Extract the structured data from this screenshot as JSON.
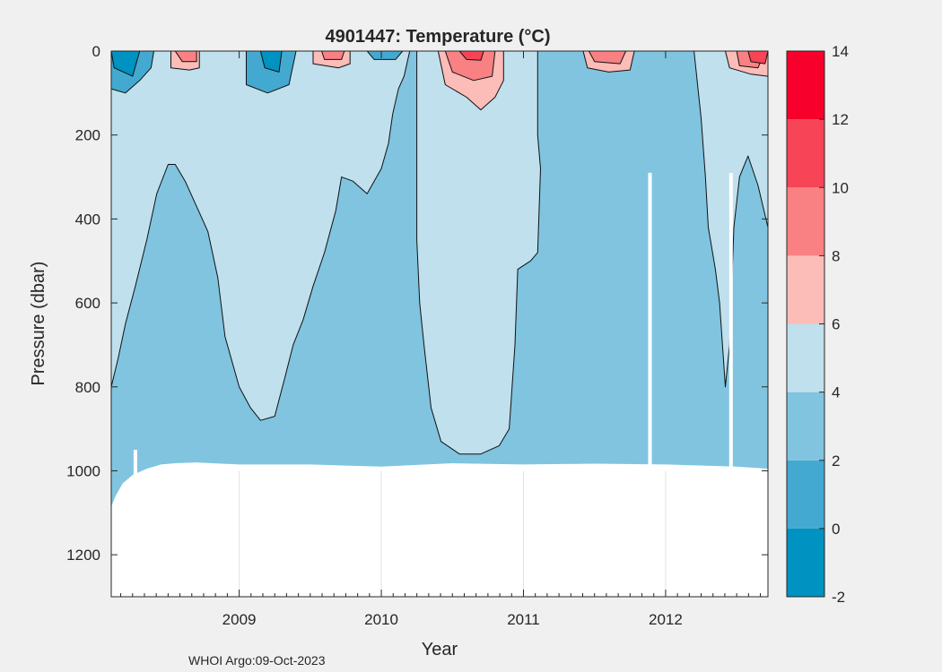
{
  "figure": {
    "credit": "WHOI Argo:09-Oct-2023",
    "background": "#f0f0f0"
  },
  "chart_data": {
    "type": "heatmap",
    "title": "4901447:  Temperature (°C)",
    "xlabel": "Year",
    "ylabel": "Pressure (dbar)",
    "xlim": [
      2008.1,
      2012.72
    ],
    "ylim": [
      1300,
      0
    ],
    "y_reversed": true,
    "x_ticks": [
      2009,
      2010,
      2011,
      2012
    ],
    "x_tick_labels": [
      "2009",
      "2010",
      "2011",
      "2012"
    ],
    "y_ticks": [
      0,
      200,
      400,
      600,
      800,
      1000,
      1200
    ],
    "y_tick_labels": [
      "0",
      "200",
      "400",
      "600",
      "800",
      "1000",
      "1200"
    ],
    "grid": false,
    "colorbar": {
      "location": "right",
      "levels": [
        -2,
        0,
        2,
        4,
        6,
        8,
        10,
        12,
        14
      ],
      "tick_labels": [
        "-2",
        "0",
        "2",
        "4",
        "6",
        "8",
        "10",
        "12",
        "14"
      ],
      "colors": [
        "#0092c0",
        "#44a9d0",
        "#80c4e0",
        "#bfe0ec",
        "#fcbcb8",
        "#f98183",
        "#f74456",
        "#f7002b"
      ]
    },
    "colors": {
      "band_2_4": "#80c4e0",
      "band_4_6": "#bfe0ec",
      "band_6_8": "#fcbcb8",
      "band_8_10": "#f98183",
      "band_10_12": "#f74456",
      "band_12_14": "#f7002b",
      "band_0_2": "#44a9d0",
      "band_m2_0": "#0092c0",
      "no_data": "#ffffff"
    },
    "regions": {
      "band_4_6_upper": [
        [
          2008.1,
          800
        ],
        [
          2008.15,
          730
        ],
        [
          2008.2,
          650
        ],
        [
          2008.27,
          560
        ],
        [
          2008.35,
          450
        ],
        [
          2008.42,
          340
        ],
        [
          2008.5,
          270
        ],
        [
          2008.55,
          270
        ],
        [
          2008.62,
          310
        ],
        [
          2008.7,
          370
        ],
        [
          2008.78,
          430
        ],
        [
          2008.85,
          540
        ],
        [
          2008.9,
          680
        ],
        [
          2009.0,
          800
        ],
        [
          2009.08,
          850
        ],
        [
          2009.15,
          880
        ],
        [
          2009.25,
          870
        ],
        [
          2009.32,
          780
        ],
        [
          2009.38,
          700
        ],
        [
          2009.45,
          640
        ],
        [
          2009.52,
          560
        ],
        [
          2009.6,
          480
        ],
        [
          2009.68,
          380
        ],
        [
          2009.72,
          300
        ],
        [
          2009.8,
          310
        ],
        [
          2009.9,
          340
        ],
        [
          2010.0,
          280
        ],
        [
          2010.05,
          220
        ],
        [
          2010.08,
          150
        ],
        [
          2010.12,
          90
        ],
        [
          2010.16,
          60
        ],
        [
          2010.2,
          0
        ],
        [
          2008.1,
          0
        ]
      ],
      "band_4_6_valley": [
        [
          2010.25,
          0
        ],
        [
          2010.25,
          450
        ],
        [
          2010.27,
          600
        ],
        [
          2010.3,
          700
        ],
        [
          2010.35,
          850
        ],
        [
          2010.42,
          930
        ],
        [
          2010.55,
          960
        ],
        [
          2010.7,
          960
        ],
        [
          2010.83,
          940
        ],
        [
          2010.9,
          900
        ],
        [
          2010.94,
          700
        ],
        [
          2010.96,
          520
        ],
        [
          2011.05,
          500
        ],
        [
          2011.1,
          480
        ],
        [
          2011.12,
          280
        ],
        [
          2011.1,
          200
        ],
        [
          2011.1,
          0
        ]
      ],
      "band_4_6_late": [
        [
          2012.2,
          0
        ],
        [
          2012.25,
          160
        ],
        [
          2012.28,
          300
        ],
        [
          2012.3,
          420
        ],
        [
          2012.35,
          520
        ],
        [
          2012.38,
          600
        ],
        [
          2012.4,
          700
        ],
        [
          2012.42,
          800
        ],
        [
          2012.45,
          700
        ],
        [
          2012.48,
          420
        ],
        [
          2012.52,
          300
        ],
        [
          2012.58,
          250
        ],
        [
          2012.65,
          320
        ],
        [
          2012.72,
          420
        ],
        [
          2012.72,
          0
        ]
      ],
      "band_6_8": [
        [
          [
            2008.52,
            0
          ],
          [
            2008.52,
            40
          ],
          [
            2008.65,
            45
          ],
          [
            2008.72,
            40
          ],
          [
            2008.72,
            0
          ]
        ],
        [
          [
            2009.52,
            0
          ],
          [
            2009.52,
            30
          ],
          [
            2009.7,
            40
          ],
          [
            2009.78,
            30
          ],
          [
            2009.78,
            0
          ]
        ],
        [
          [
            2010.4,
            0
          ],
          [
            2010.45,
            80
          ],
          [
            2010.6,
            110
          ],
          [
            2010.7,
            140
          ],
          [
            2010.8,
            110
          ],
          [
            2010.86,
            70
          ],
          [
            2010.86,
            0
          ]
        ],
        [
          [
            2011.42,
            0
          ],
          [
            2011.45,
            40
          ],
          [
            2011.6,
            50
          ],
          [
            2011.75,
            45
          ],
          [
            2011.78,
            0
          ]
        ],
        [
          [
            2012.42,
            0
          ],
          [
            2012.45,
            40
          ],
          [
            2012.6,
            55
          ],
          [
            2012.72,
            60
          ],
          [
            2012.72,
            0
          ]
        ]
      ],
      "band_8_10": [
        [
          [
            2008.55,
            0
          ],
          [
            2008.6,
            25
          ],
          [
            2008.7,
            25
          ],
          [
            2008.7,
            0
          ]
        ],
        [
          [
            2009.58,
            0
          ],
          [
            2009.6,
            20
          ],
          [
            2009.72,
            20
          ],
          [
            2009.74,
            0
          ]
        ],
        [
          [
            2010.45,
            0
          ],
          [
            2010.5,
            50
          ],
          [
            2010.65,
            70
          ],
          [
            2010.78,
            60
          ],
          [
            2010.8,
            0
          ]
        ],
        [
          [
            2011.46,
            0
          ],
          [
            2011.5,
            25
          ],
          [
            2011.68,
            30
          ],
          [
            2011.72,
            0
          ]
        ],
        [
          [
            2012.5,
            0
          ],
          [
            2012.52,
            35
          ],
          [
            2012.65,
            40
          ],
          [
            2012.7,
            0
          ]
        ]
      ],
      "band_10_12": [
        [
          [
            2012.58,
            0
          ],
          [
            2012.6,
            25
          ],
          [
            2012.7,
            30
          ],
          [
            2012.72,
            0
          ]
        ],
        [
          [
            2010.55,
            0
          ],
          [
            2010.6,
            20
          ],
          [
            2010.7,
            22
          ],
          [
            2010.72,
            0
          ]
        ]
      ],
      "band_0_2": [
        [
          [
            2008.1,
            0
          ],
          [
            2008.1,
            90
          ],
          [
            2008.2,
            100
          ],
          [
            2008.3,
            70
          ],
          [
            2008.38,
            40
          ],
          [
            2008.4,
            0
          ]
        ],
        [
          [
            2009.05,
            0
          ],
          [
            2009.05,
            80
          ],
          [
            2009.2,
            100
          ],
          [
            2009.35,
            80
          ],
          [
            2009.4,
            0
          ]
        ],
        [
          [
            2009.9,
            0
          ],
          [
            2009.95,
            20
          ],
          [
            2010.1,
            20
          ],
          [
            2010.15,
            0
          ]
        ]
      ],
      "band_m2_0": [
        [
          [
            2008.1,
            0
          ],
          [
            2008.12,
            40
          ],
          [
            2008.25,
            60
          ],
          [
            2008.3,
            0
          ]
        ],
        [
          [
            2009.15,
            0
          ],
          [
            2009.18,
            40
          ],
          [
            2009.28,
            50
          ],
          [
            2009.3,
            0
          ]
        ]
      ]
    },
    "mask_bottom": {
      "x": [
        2008.1,
        2008.13,
        2008.18,
        2008.25,
        2008.35,
        2008.45,
        2008.55,
        2008.7,
        2009.0,
        2009.5,
        2010.0,
        2010.5,
        2011.0,
        2011.5,
        2012.0,
        2012.5,
        2012.72
      ],
      "pressure": [
        1085,
        1060,
        1030,
        1010,
        995,
        985,
        982,
        980,
        985,
        985,
        990,
        982,
        985,
        983,
        985,
        990,
        995
      ]
    },
    "mask_gaps": [
      {
        "x": 2008.27,
        "top": 950
      },
      {
        "x": 2011.89,
        "top": 290
      },
      {
        "x": 2012.46,
        "top": 290
      }
    ]
  }
}
